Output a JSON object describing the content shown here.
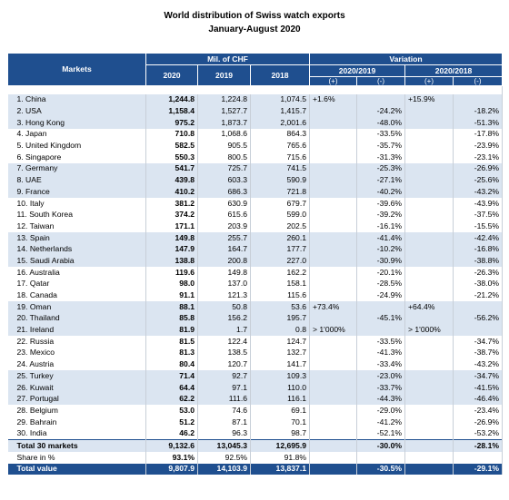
{
  "header": {
    "title": "World distribution of Swiss watch exports",
    "subtitle": "January-August 2020",
    "markets": "Markets",
    "mil": "Mil. of CHF",
    "variation": "Variation",
    "years": [
      "2020",
      "2019",
      "2018"
    ],
    "periods": [
      "2020/2019",
      "2020/2018"
    ],
    "signs": [
      "(+)",
      "(-)",
      "(+)",
      "(-)"
    ]
  },
  "table": {
    "rows": [
      [
        "1. China",
        "1,244.8",
        "1,224.8",
        "1,074.5",
        "+1.6%",
        null,
        "+15.9%",
        null
      ],
      [
        "2. USA",
        "1,158.4",
        "1,527.7",
        "1,415.7",
        null,
        "-24.2%",
        null,
        "-18.2%"
      ],
      [
        "3. Hong Kong",
        "975.2",
        "1,873.7",
        "2,001.6",
        null,
        "-48.0%",
        null,
        "-51.3%"
      ],
      [
        "4. Japan",
        "710.8",
        "1,068.6",
        "864.3",
        null,
        "-33.5%",
        null,
        "-17.8%"
      ],
      [
        "5. United Kingdom",
        "582.5",
        "905.5",
        "765.6",
        null,
        "-35.7%",
        null,
        "-23.9%"
      ],
      [
        "6. Singapore",
        "550.3",
        "800.5",
        "715.6",
        null,
        "-31.3%",
        null,
        "-23.1%"
      ],
      [
        "7. Germany",
        "541.7",
        "725.7",
        "741.5",
        null,
        "-25.3%",
        null,
        "-26.9%"
      ],
      [
        "8. UAE",
        "439.8",
        "603.3",
        "590.9",
        null,
        "-27.1%",
        null,
        "-25.6%"
      ],
      [
        "9. France",
        "410.2",
        "686.3",
        "721.8",
        null,
        "-40.2%",
        null,
        "-43.2%"
      ],
      [
        "10. Italy",
        "381.2",
        "630.9",
        "679.7",
        null,
        "-39.6%",
        null,
        "-43.9%"
      ],
      [
        "11. South Korea",
        "374.2",
        "615.6",
        "599.0",
        null,
        "-39.2%",
        null,
        "-37.5%"
      ],
      [
        "12. Taiwan",
        "171.1",
        "203.9",
        "202.5",
        null,
        "-16.1%",
        null,
        "-15.5%"
      ],
      [
        "13. Spain",
        "149.8",
        "255.7",
        "260.1",
        null,
        "-41.4%",
        null,
        "-42.4%"
      ],
      [
        "14. Netherlands",
        "147.9",
        "164.7",
        "177.7",
        null,
        "-10.2%",
        null,
        "-16.8%"
      ],
      [
        "15. Saudi Arabia",
        "138.8",
        "200.8",
        "227.0",
        null,
        "-30.9%",
        null,
        "-38.8%"
      ],
      [
        "16. Australia",
        "119.6",
        "149.8",
        "162.2",
        null,
        "-20.1%",
        null,
        "-26.3%"
      ],
      [
        "17. Qatar",
        "98.0",
        "137.0",
        "158.1",
        null,
        "-28.5%",
        null,
        "-38.0%"
      ],
      [
        "18. Canada",
        "91.1",
        "121.3",
        "115.6",
        null,
        "-24.9%",
        null,
        "-21.2%"
      ],
      [
        "19. Oman",
        "88.1",
        "50.8",
        "53.6",
        "+73.4%",
        null,
        "+64.4%",
        null
      ],
      [
        "20. Thailand",
        "85.8",
        "156.2",
        "195.7",
        null,
        "-45.1%",
        null,
        "-56.2%"
      ],
      [
        "21. Ireland",
        "81.9",
        "1.7",
        "0.8",
        "> 1'000%",
        null,
        "> 1'000%",
        null
      ],
      [
        "22. Russia",
        "81.5",
        "122.4",
        "124.7",
        null,
        "-33.5%",
        null,
        "-34.7%"
      ],
      [
        "23. Mexico",
        "81.3",
        "138.5",
        "132.7",
        null,
        "-41.3%",
        null,
        "-38.7%"
      ],
      [
        "24. Austria",
        "80.4",
        "120.7",
        "141.7",
        null,
        "-33.4%",
        null,
        "-43.2%"
      ],
      [
        "25. Turkey",
        "71.4",
        "92.7",
        "109.3",
        null,
        "-23.0%",
        null,
        "-34.7%"
      ],
      [
        "26. Kuwait",
        "64.4",
        "97.1",
        "110.0",
        null,
        "-33.7%",
        null,
        "-41.5%"
      ],
      [
        "27. Portugal",
        "62.2",
        "111.6",
        "116.1",
        null,
        "-44.3%",
        null,
        "-46.4%"
      ],
      [
        "28. Belgium",
        "53.0",
        "74.6",
        "69.1",
        null,
        "-29.0%",
        null,
        "-23.4%"
      ],
      [
        "29. Bahrain",
        "51.2",
        "87.1",
        "70.1",
        null,
        "-41.2%",
        null,
        "-26.9%"
      ],
      [
        "30. India",
        "46.2",
        "96.3",
        "98.7",
        null,
        "-52.1%",
        null,
        "-53.2%"
      ]
    ],
    "totals": [
      [
        "Total 30 markets",
        "9,132.6",
        "13,045.3",
        "12,695.9",
        null,
        "-30.0%",
        null,
        "-28.1%"
      ],
      [
        "Share in %",
        "93.1%",
        "92.5%",
        "91.8%",
        null,
        null,
        null,
        null
      ],
      [
        "Total value",
        "9,807.9",
        "14,103.9",
        "13,837.1",
        null,
        "-30.5%",
        null,
        "-29.1%"
      ]
    ]
  }
}
